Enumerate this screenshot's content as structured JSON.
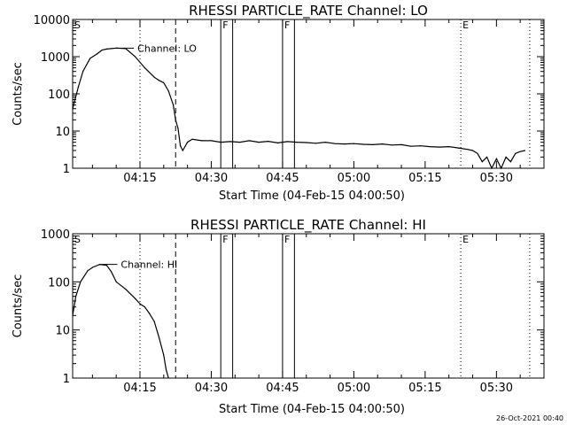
{
  "footer_timestamp": "26-Oct-2021 00:40",
  "chart_data": [
    {
      "type": "line",
      "title": "RHESSI PARTICLE_RATE Channel: LO",
      "xlabel": "Start Time (04-Feb-15 04:00:50)",
      "ylabel": "Counts/sec",
      "yscale": "log",
      "ylim": [
        1,
        10000
      ],
      "y_tick_labels": [
        "1",
        "10",
        "100",
        "1000",
        "10000"
      ],
      "xlim": [
        "04:00:50",
        "05:40:00"
      ],
      "x_tick_labels": [
        "04:15",
        "04:30",
        "04:45",
        "05:00",
        "05:15",
        "05:30"
      ],
      "series": [
        {
          "name": "Channel: LO",
          "x": [
            "04:00:50",
            "04:02:00",
            "04:03:00",
            "04:04:30",
            "04:06:00",
            "04:07:00",
            "04:08:00",
            "04:10:00",
            "04:12:00",
            "04:14:00",
            "04:16:00",
            "04:18:00",
            "04:19:00",
            "04:20:00",
            "04:21:00",
            "04:22:00",
            "04:22:30",
            "04:23:00",
            "04:23:30",
            "04:24:00",
            "04:25:00",
            "04:26:00",
            "04:28:00",
            "04:30:00",
            "04:32:00",
            "04:34:00",
            "04:36:00",
            "04:38:00",
            "04:40:00",
            "04:42:00",
            "04:44:00",
            "04:46:00",
            "04:48:00",
            "04:50:00",
            "04:52:00",
            "04:54:00",
            "04:56:00",
            "04:58:00",
            "05:00:00",
            "05:02:00",
            "05:04:00",
            "05:06:00",
            "05:08:00",
            "05:10:00",
            "05:12:00",
            "05:14:00",
            "05:16:00",
            "05:18:00",
            "05:20:00",
            "05:22:00",
            "05:24:00",
            "05:25:00",
            "05:26:00",
            "05:27:00",
            "05:28:00",
            "05:29:00",
            "05:30:00",
            "05:31:00",
            "05:32:00",
            "05:33:00",
            "05:34:00",
            "05:35:00",
            "05:36:00"
          ],
          "y": [
            40,
            150,
            400,
            900,
            1200,
            1500,
            1600,
            1700,
            1650,
            1000,
            500,
            280,
            230,
            200,
            120,
            50,
            20,
            12,
            4,
            3,
            5,
            6,
            5.5,
            5.5,
            5,
            5.2,
            5,
            5.5,
            5,
            5.3,
            4.8,
            5.2,
            5,
            4.9,
            4.7,
            5,
            4.6,
            4.5,
            4.6,
            4.4,
            4.3,
            4.5,
            4.2,
            4.3,
            3.9,
            4,
            3.8,
            3.7,
            3.8,
            3.5,
            3.2,
            3,
            2.5,
            1.5,
            2,
            1,
            1.8,
            1,
            2,
            1.5,
            2.5,
            2.8,
            3
          ]
        }
      ],
      "annotations": {
        "vertical_markers": [
          {
            "time": "04:00:50",
            "label": "S",
            "style": "none"
          },
          {
            "time": "04:15:00",
            "label": "",
            "style": "dotted"
          },
          {
            "time": "04:22:30",
            "label": "",
            "style": "dashed"
          },
          {
            "time": "04:32:00",
            "label": "F",
            "style": "solid"
          },
          {
            "time": "04:34:30",
            "label": "",
            "style": "solid"
          },
          {
            "time": "04:45:00",
            "label": "F",
            "style": "solid"
          },
          {
            "time": "04:47:30",
            "label": "",
            "style": "solid"
          },
          {
            "time": "05:22:30",
            "label": "E",
            "style": "dotted"
          },
          {
            "time": "05:37:00",
            "label": "",
            "style": "dotted"
          }
        ]
      }
    },
    {
      "type": "line",
      "title": "RHESSI PARTICLE_RATE Channel: HI",
      "xlabel": "Start Time (04-Feb-15 04:00:50)",
      "ylabel": "Counts/sec",
      "yscale": "log",
      "ylim": [
        1,
        1000
      ],
      "y_tick_labels": [
        "1",
        "10",
        "100",
        "1000"
      ],
      "xlim": [
        "04:00:50",
        "05:40:00"
      ],
      "x_tick_labels": [
        "04:15",
        "04:30",
        "04:45",
        "05:00",
        "05:15",
        "05:30"
      ],
      "series": [
        {
          "name": "Channel: HI",
          "x": [
            "04:00:50",
            "04:01:30",
            "04:02:30",
            "04:04:00",
            "04:05:00",
            "04:06:30",
            "04:08:00",
            "04:09:00",
            "04:10:00",
            "04:12:00",
            "04:14:00",
            "04:15:00",
            "04:16:00",
            "04:17:00",
            "04:18:00",
            "04:19:00",
            "04:20:00",
            "04:20:30",
            "04:21:00"
          ],
          "y": [
            20,
            50,
            100,
            170,
            200,
            230,
            220,
            160,
            100,
            70,
            45,
            35,
            30,
            22,
            15,
            7,
            3,
            1.5,
            1
          ]
        }
      ],
      "annotations": {
        "vertical_markers": [
          {
            "time": "04:00:50",
            "label": "S",
            "style": "none"
          },
          {
            "time": "04:15:00",
            "label": "",
            "style": "dotted"
          },
          {
            "time": "04:22:30",
            "label": "",
            "style": "dashed"
          },
          {
            "time": "04:32:00",
            "label": "F",
            "style": "solid"
          },
          {
            "time": "04:34:30",
            "label": "",
            "style": "solid"
          },
          {
            "time": "04:45:00",
            "label": "F",
            "style": "solid"
          },
          {
            "time": "04:47:30",
            "label": "",
            "style": "solid"
          },
          {
            "time": "05:22:30",
            "label": "E",
            "style": "dotted"
          },
          {
            "time": "05:37:00",
            "label": "",
            "style": "dotted"
          }
        ]
      }
    }
  ]
}
